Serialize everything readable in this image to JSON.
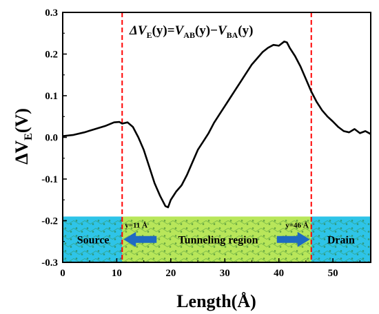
{
  "chart_data": {
    "type": "line",
    "xlabel": "Length(Å)",
    "ylabel": "ΔV",
    "ylabel_sub": "E",
    "ylabel_unit": "(V)",
    "xlim": [
      0,
      57
    ],
    "ylim": [
      -0.3,
      0.3
    ],
    "xticks": [
      0,
      10,
      20,
      30,
      40,
      50
    ],
    "xtick_labels": [
      "0",
      "10",
      "20",
      "30",
      "40",
      "50"
    ],
    "yticks": [
      -0.3,
      -0.2,
      -0.1,
      0.0,
      0.1,
      0.2,
      0.3
    ],
    "ytick_labels": [
      "-0.3",
      "-0.2",
      "-0.1",
      "0.0",
      "0.1",
      "0.2",
      "0.3"
    ],
    "grid": false,
    "formula": {
      "delta": "ΔV",
      "sub_e": "E",
      "eq": "(y)=",
      "v1": "V",
      "sub_ab": "AB",
      "mid": "(y)−",
      "v2": "V",
      "sub_ba": "BA",
      "end": "(y)"
    },
    "vlines": [
      {
        "x": 11,
        "label": "y=11 Å",
        "color": "#ff0000",
        "style": "dashed"
      },
      {
        "x": 46,
        "label": "y=46 Å",
        "color": "#ff0000",
        "style": "dashed"
      }
    ],
    "regions": [
      {
        "name": "Source",
        "x_start": 0,
        "x_end": 11,
        "color": "#2ec4e8"
      },
      {
        "name": "Tunneling region",
        "x_start": 11,
        "x_end": 46,
        "color": "#b8e65a"
      },
      {
        "name": "Drain",
        "x_start": 46,
        "x_end": 57,
        "color": "#2ec4e8"
      }
    ],
    "region_band": {
      "y_top": -0.19,
      "y_bottom": -0.3
    },
    "arrow_color": "#1f6ac2",
    "line_color": "#000000",
    "series": [
      {
        "x": [
          0,
          2,
          4,
          6,
          8,
          9.5,
          10.5,
          11,
          12,
          13,
          14,
          15,
          16,
          17,
          18,
          19,
          19.5,
          20,
          21,
          22,
          23,
          24,
          25,
          26,
          27,
          28,
          29,
          30,
          31,
          32,
          33,
          34,
          35,
          36,
          37,
          38,
          39,
          40,
          41,
          41.5,
          42,
          43,
          44,
          45,
          46,
          47,
          48,
          49,
          50,
          51,
          52,
          53,
          54,
          55,
          56,
          57
        ],
        "y": [
          0.003,
          0.006,
          0.012,
          0.02,
          0.028,
          0.036,
          0.037,
          0.033,
          0.036,
          0.025,
          0.0,
          -0.03,
          -0.07,
          -0.11,
          -0.14,
          -0.165,
          -0.168,
          -0.15,
          -0.13,
          -0.115,
          -0.09,
          -0.06,
          -0.03,
          -0.01,
          0.01,
          0.035,
          0.055,
          0.075,
          0.095,
          0.115,
          0.135,
          0.155,
          0.175,
          0.19,
          0.205,
          0.215,
          0.222,
          0.22,
          0.23,
          0.228,
          0.215,
          0.195,
          0.17,
          0.14,
          0.11,
          0.085,
          0.065,
          0.05,
          0.038,
          0.025,
          0.015,
          0.012,
          0.02,
          0.01,
          0.015,
          0.008
        ]
      }
    ]
  }
}
